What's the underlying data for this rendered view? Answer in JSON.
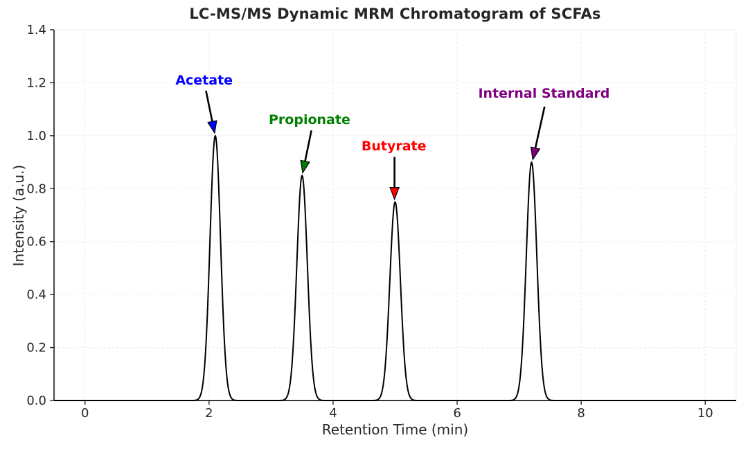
{
  "figure": {
    "title": "LC-MS/MS Dynamic MRM Chromatogram of SCFAs",
    "xlabel": "Retention Time (min)",
    "ylabel": "Intensity (a.u.)"
  },
  "chart_data": {
    "type": "line",
    "title": "LC-MS/MS Dynamic MRM Chromatogram of SCFAs",
    "xlabel": "Retention Time (min)",
    "ylabel": "Intensity (a.u.)",
    "xlim": [
      -0.5,
      10.5
    ],
    "ylim": [
      0.0,
      1.4
    ],
    "x_ticks": [
      0,
      2,
      4,
      6,
      8,
      10
    ],
    "y_ticks": [
      0.0,
      0.2,
      0.4,
      0.6,
      0.8,
      1.0,
      1.2,
      1.4
    ],
    "grid": true,
    "legend_position": "none",
    "trace_color": "#000000",
    "background_color": "#ffffff",
    "axis_color": "#262626",
    "grid_color": "#e8e8e8",
    "peaks": [
      {
        "name": "Acetate",
        "retention_time_min": 2.1,
        "intensity_au": 1.0,
        "sigma_min": 0.085,
        "label_color": "#0000ff",
        "label_pos": [
          1.92,
          1.21
        ],
        "arrow_tail": [
          1.95,
          1.17
        ],
        "arrow_tip": [
          2.09,
          1.01
        ]
      },
      {
        "name": "Propionate",
        "retention_time_min": 3.5,
        "intensity_au": 0.85,
        "sigma_min": 0.085,
        "label_color": "#008000",
        "label_pos": [
          3.62,
          1.06
        ],
        "arrow_tail": [
          3.65,
          1.02
        ],
        "arrow_tip": [
          3.51,
          0.86
        ]
      },
      {
        "name": "Butyrate",
        "retention_time_min": 5.0,
        "intensity_au": 0.75,
        "sigma_min": 0.085,
        "label_color": "#ff0000",
        "label_pos": [
          4.98,
          0.96
        ],
        "arrow_tail": [
          4.99,
          0.92
        ],
        "arrow_tip": [
          4.99,
          0.76
        ]
      },
      {
        "name": "Internal Standard",
        "retention_time_min": 7.2,
        "intensity_au": 0.9,
        "sigma_min": 0.085,
        "label_color": "#800080",
        "label_pos": [
          7.4,
          1.16
        ],
        "arrow_tail": [
          7.41,
          1.11
        ],
        "arrow_tip": [
          7.22,
          0.91
        ]
      }
    ]
  }
}
